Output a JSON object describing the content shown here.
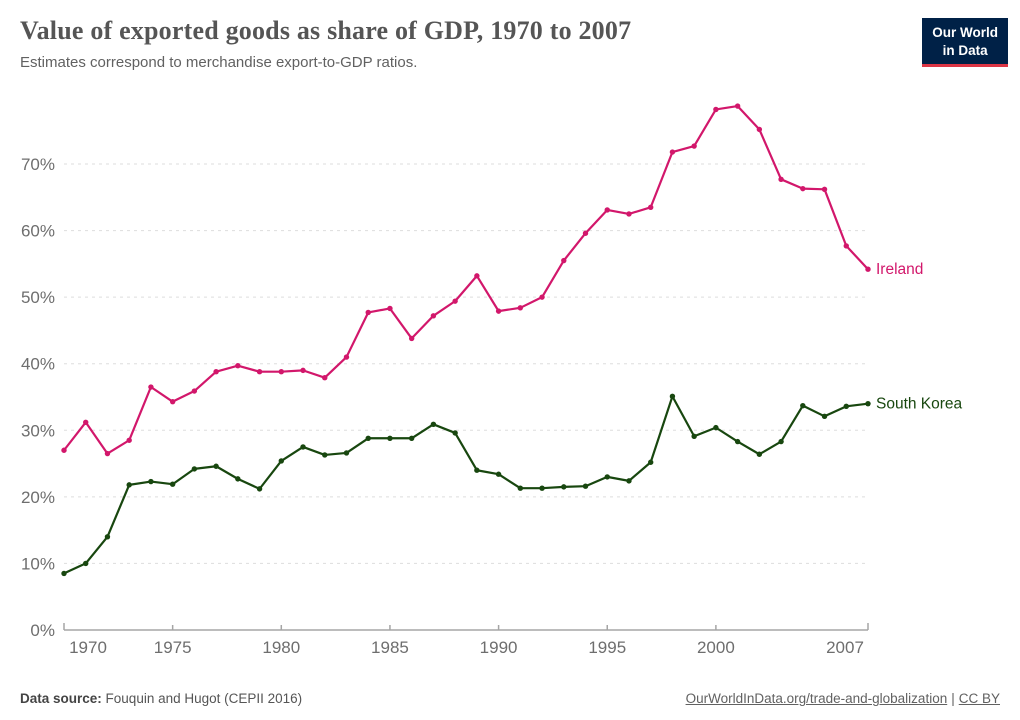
{
  "header": {
    "title": "Value of exported goods as share of GDP, 1970 to 2007",
    "subtitle": "Estimates correspond to merchandise export-to-GDP ratios."
  },
  "logo": {
    "line1": "Our World",
    "line2": "in Data"
  },
  "chart_data": {
    "type": "line",
    "title": "Value of exported goods as share of GDP, 1970 to 2007",
    "x": [
      1970,
      1971,
      1972,
      1973,
      1974,
      1975,
      1976,
      1977,
      1978,
      1979,
      1980,
      1981,
      1982,
      1983,
      1984,
      1985,
      1986,
      1987,
      1988,
      1989,
      1990,
      1991,
      1992,
      1993,
      1994,
      1995,
      1996,
      1997,
      1998,
      1999,
      2000,
      2001,
      2002,
      2003,
      2004,
      2005,
      2006,
      2007
    ],
    "series": [
      {
        "name": "Ireland",
        "color": "#d2176b",
        "values": [
          27,
          31.2,
          26.5,
          28.5,
          36.5,
          34.3,
          35.9,
          38.8,
          39.7,
          38.8,
          38.8,
          39,
          37.9,
          41,
          47.7,
          48.3,
          43.8,
          47.2,
          49.4,
          53.2,
          47.9,
          48.4,
          50,
          55.5,
          59.6,
          63.1,
          62.5,
          63.5,
          71.8,
          72.7,
          78.2,
          78.7,
          75.2,
          67.7,
          66.3,
          66.2,
          57.7,
          54.2
        ]
      },
      {
        "name": "South Korea",
        "color": "#18470f",
        "values": [
          8.5,
          10,
          14,
          21.8,
          22.3,
          21.9,
          24.2,
          24.6,
          22.7,
          21.2,
          25.4,
          27.5,
          26.3,
          26.6,
          28.8,
          28.8,
          28.8,
          30.9,
          29.6,
          24,
          23.4,
          21.3,
          21.3,
          21.5,
          21.6,
          23,
          22.4,
          25.2,
          35.1,
          29.1,
          30.4,
          28.3,
          26.4,
          28.3,
          33.7,
          32.1,
          33.6,
          34
        ]
      }
    ],
    "yticks": [
      0,
      10,
      20,
      30,
      40,
      50,
      60,
      70
    ],
    "ytick_suffix": "%",
    "xticks": [
      1970,
      1975,
      1980,
      1985,
      1990,
      1995,
      2000,
      2007
    ],
    "xlim": [
      1970,
      2007
    ],
    "ylim": [
      0,
      80
    ],
    "grid": "dashed-horizontal",
    "legend": "series-end-labels"
  },
  "footer": {
    "datasource_label": "Data source:",
    "datasource_value": "Fouquin and Hugot (CEPII 2016)",
    "link_text": "OurWorldInData.org/trade-and-globalization",
    "separator": "|",
    "license_text": "CC BY"
  },
  "colors": {
    "ireland": "#d2176b",
    "south_korea": "#18470f",
    "grid": "#dddddd",
    "axis": "#a5a5a5",
    "tick_label": "#6e6e6e",
    "title": "#555555",
    "subtitle": "#616161",
    "logo_bg": "#002147",
    "logo_stripe": "#dc3545"
  }
}
